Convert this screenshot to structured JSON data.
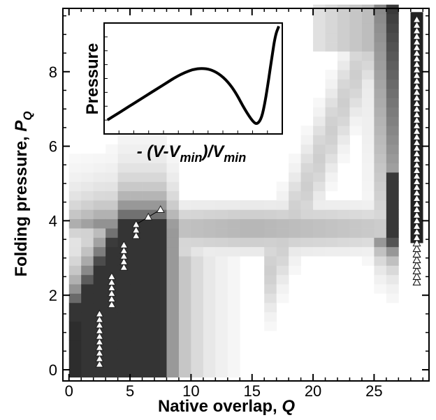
{
  "chart_data": [
    {
      "type": "heatmap",
      "xlabel_text": "Native overlap, ",
      "xlabel_var": "Q",
      "ylabel_text": "Folding pressure, ",
      "ylabel_var": "P",
      "ylabel_sub": "Q",
      "xlim": [
        -0.5,
        29.5
      ],
      "ylim": [
        -0.3,
        9.7
      ],
      "x_ticks": [
        0,
        5,
        10,
        15,
        20,
        25
      ],
      "x_tick_labels": [
        "0",
        "5",
        "10",
        "15",
        "20",
        "25"
      ],
      "y_ticks": [
        0,
        2,
        4,
        6,
        8
      ],
      "y_tick_labels": [
        "0",
        "2",
        "4",
        "6",
        "8"
      ],
      "grid": false,
      "colorscale": "white-to-black",
      "markers_open_triangle": [
        {
          "x": 2.5,
          "y": 0.15
        },
        {
          "x": 2.5,
          "y": 0.3
        },
        {
          "x": 2.5,
          "y": 0.45
        },
        {
          "x": 2.5,
          "y": 0.6
        },
        {
          "x": 2.5,
          "y": 0.75
        },
        {
          "x": 2.5,
          "y": 0.9
        },
        {
          "x": 2.5,
          "y": 1.05
        },
        {
          "x": 2.5,
          "y": 1.2
        },
        {
          "x": 2.5,
          "y": 1.35
        },
        {
          "x": 2.5,
          "y": 1.5
        },
        {
          "x": 3.5,
          "y": 1.75
        },
        {
          "x": 3.5,
          "y": 1.9
        },
        {
          "x": 3.5,
          "y": 2.05
        },
        {
          "x": 3.5,
          "y": 2.2
        },
        {
          "x": 3.5,
          "y": 2.35
        },
        {
          "x": 3.5,
          "y": 2.5
        },
        {
          "x": 4.5,
          "y": 2.75
        },
        {
          "x": 4.5,
          "y": 2.9
        },
        {
          "x": 4.5,
          "y": 3.05
        },
        {
          "x": 4.5,
          "y": 3.2
        },
        {
          "x": 4.5,
          "y": 3.35
        },
        {
          "x": 5.5,
          "y": 3.6
        },
        {
          "x": 5.5,
          "y": 3.75
        },
        {
          "x": 5.5,
          "y": 3.9
        },
        {
          "x": 6.5,
          "y": 4.1
        },
        {
          "x": 7.5,
          "y": 4.3
        },
        {
          "x": 28.5,
          "y": 2.35
        },
        {
          "x": 28.5,
          "y": 2.5
        },
        {
          "x": 28.5,
          "y": 2.65
        },
        {
          "x": 28.5,
          "y": 2.8
        },
        {
          "x": 28.5,
          "y": 2.95
        },
        {
          "x": 28.5,
          "y": 3.1
        },
        {
          "x": 28.5,
          "y": 3.25
        },
        {
          "x": 28.5,
          "y": 3.4
        },
        {
          "x": 28.5,
          "y": 3.55
        },
        {
          "x": 28.5,
          "y": 3.7
        },
        {
          "x": 28.5,
          "y": 3.85
        },
        {
          "x": 28.5,
          "y": 4.0
        },
        {
          "x": 28.5,
          "y": 4.15
        },
        {
          "x": 28.5,
          "y": 4.3
        },
        {
          "x": 28.5,
          "y": 4.45
        },
        {
          "x": 28.5,
          "y": 4.6
        },
        {
          "x": 28.5,
          "y": 4.75
        },
        {
          "x": 28.5,
          "y": 4.9
        },
        {
          "x": 28.5,
          "y": 5.05
        },
        {
          "x": 28.5,
          "y": 5.2
        },
        {
          "x": 28.5,
          "y": 5.35
        },
        {
          "x": 28.5,
          "y": 5.5
        },
        {
          "x": 28.5,
          "y": 5.65
        },
        {
          "x": 28.5,
          "y": 5.8
        },
        {
          "x": 28.5,
          "y": 5.95
        },
        {
          "x": 28.5,
          "y": 6.1
        },
        {
          "x": 28.5,
          "y": 6.25
        },
        {
          "x": 28.5,
          "y": 6.4
        },
        {
          "x": 28.5,
          "y": 6.55
        },
        {
          "x": 28.5,
          "y": 6.7
        },
        {
          "x": 28.5,
          "y": 6.85
        },
        {
          "x": 28.5,
          "y": 7.0
        },
        {
          "x": 28.5,
          "y": 7.15
        },
        {
          "x": 28.5,
          "y": 7.3
        },
        {
          "x": 28.5,
          "y": 7.45
        },
        {
          "x": 28.5,
          "y": 7.6
        },
        {
          "x": 28.5,
          "y": 7.75
        },
        {
          "x": 28.5,
          "y": 7.9
        },
        {
          "x": 28.5,
          "y": 8.05
        },
        {
          "x": 28.5,
          "y": 8.2
        },
        {
          "x": 28.5,
          "y": 8.35
        },
        {
          "x": 28.5,
          "y": 8.5
        },
        {
          "x": 28.5,
          "y": 8.65
        },
        {
          "x": 28.5,
          "y": 8.8
        },
        {
          "x": 28.5,
          "y": 8.95
        },
        {
          "x": 28.5,
          "y": 9.1
        },
        {
          "x": 28.5,
          "y": 9.25
        },
        {
          "x": 28.5,
          "y": 9.4
        }
      ],
      "black_bar": {
        "x": 28.5,
        "y_from": 3.4,
        "y_to": 9.6
      }
    },
    {
      "type": "line",
      "ylabel": "Pressure",
      "xlabel_prefix": "- (V-V",
      "xlabel_sub1": "min",
      "xlabel_mid": ")/V",
      "xlabel_sub2": "min",
      "x": [
        0,
        0.05,
        0.1,
        0.15,
        0.2,
        0.25,
        0.3,
        0.35,
        0.4,
        0.45,
        0.5,
        0.55,
        0.6,
        0.65,
        0.7,
        0.75,
        0.8,
        0.85,
        0.875,
        0.9,
        0.92,
        0.94,
        0.96,
        0.98,
        1.0
      ],
      "y": [
        0.13,
        0.18,
        0.23,
        0.28,
        0.33,
        0.38,
        0.43,
        0.48,
        0.53,
        0.57,
        0.6,
        0.61,
        0.6,
        0.56,
        0.49,
        0.38,
        0.23,
        0.11,
        0.09,
        0.15,
        0.3,
        0.5,
        0.72,
        0.92,
        1.0
      ],
      "xlim": [
        -0.02,
        1.02
      ],
      "ylim": [
        0,
        1.03
      ]
    }
  ]
}
